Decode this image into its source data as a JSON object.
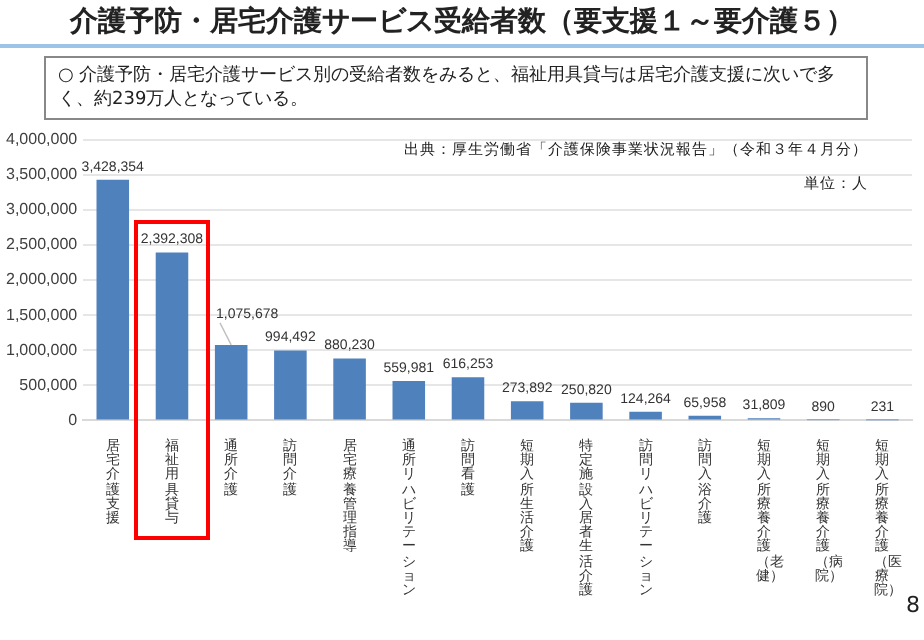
{
  "chart_data": {
    "type": "bar",
    "title": "介護予防・居宅介護サービス受給者数（要支援１～要介護５）",
    "subtitle": "○ 介護予防・居宅介護サービス別の受給者数をみると、福祉用具貸与は居宅介護支援に次いで多く、約239万人となっている。",
    "categories": [
      "居宅介護支援",
      "福祉用具貸与",
      "通所介護",
      "訪問介護",
      "居宅療養管理指導",
      "通所リハビリテーション",
      "訪問看護",
      "短期入所生活介護",
      "特定施設入居者生活介護",
      "訪問リハビリテーション",
      "訪問入浴介護",
      "短期入所療養介護（老健）",
      "短期入所療養介護（病院）",
      "短期入所療養介護（医療院）"
    ],
    "values": [
      3428354,
      2392308,
      1075678,
      994492,
      880230,
      559981,
      616253,
      273892,
      250820,
      124264,
      65958,
      31809,
      890,
      231
    ],
    "value_labels": [
      "3,428,354",
      "2,392,308",
      "1,075,678",
      "994,492",
      "880,230",
      "559,981",
      "616,253",
      "273,892",
      "250,820",
      "124,264",
      "65,958",
      "31,809",
      "890",
      "231"
    ],
    "color": "#4f81bd",
    "ylim": [
      0,
      4000000
    ],
    "yticks": [
      0,
      {
        "value": 500000,
        "label": "500,000"
      },
      {
        "value": 1000000,
        "label": "1,000,000"
      },
      {
        "value": 1500000,
        "label": "1,500,000"
      },
      {
        "value": 2000000,
        "label": "2,000,000"
      },
      {
        "value": 2500000,
        "label": "2,500,000"
      },
      {
        "value": 3000000,
        "label": "3,000,000"
      },
      {
        "value": 3500000,
        "label": "3,500,000"
      },
      {
        "value": 4000000,
        "label": "4,000,000"
      }
    ],
    "grid": "y",
    "legend": false,
    "annotations": [
      "出典：厚生労働省「介護保険事業状況報告」（令和３年４月分）",
      "単位：人",
      "8"
    ]
  }
}
